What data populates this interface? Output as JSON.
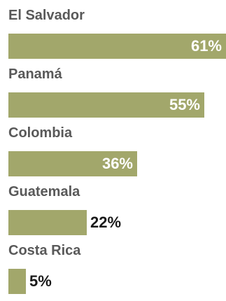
{
  "chart_data": {
    "type": "bar",
    "orientation": "horizontal",
    "categories": [
      "El Salvador",
      "Panamá",
      "Colombia",
      "Guatemala",
      "Costa Rica"
    ],
    "values": [
      61,
      55,
      36,
      22,
      5
    ],
    "value_labels": [
      "61%",
      "55%",
      "36%",
      "22%",
      "5%"
    ],
    "unit": "%",
    "xlim": [
      0,
      61
    ],
    "grid": false,
    "legend": "none",
    "bar_color": "#a2a76b"
  }
}
